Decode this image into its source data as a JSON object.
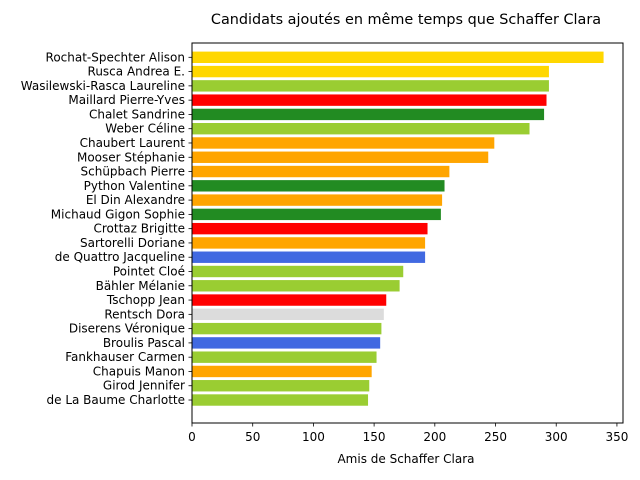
{
  "chart_data": {
    "type": "bar",
    "orientation": "horizontal",
    "title": "Candidats ajoutés en même temps que Schaffer Clara",
    "xlabel": "Amis de Schaffer Clara",
    "ylabel": "",
    "xlim": [
      0,
      355
    ],
    "xticks": [
      0,
      50,
      100,
      150,
      200,
      250,
      300,
      350
    ],
    "grid": false,
    "categories": [
      "Rochat-Spechter Alison",
      "Rusca Andrea E.",
      "Wasilewski-Rasca Laureline",
      "Maillard Pierre-Yves",
      "Chalet Sandrine",
      "Weber Céline",
      "Chaubert Laurent",
      "Mooser Stéphanie",
      "Schüpbach Pierre",
      "Python Valentine",
      "El Din Alexandre",
      "Michaud Gigon Sophie",
      "Crottaz Brigitte",
      "Sartorelli Doriane",
      "de Quattro Jacqueline",
      "Pointet Cloé",
      "Bähler Mélanie",
      "Tschopp Jean",
      "Rentsch Dora",
      "Diserens Véronique",
      "Broulis Pascal",
      "Fankhauser Carmen",
      "Chapuis Manon",
      "Girod Jennifer",
      "de La Baume Charlotte"
    ],
    "values": [
      339,
      294,
      294,
      292,
      290,
      278,
      249,
      244,
      212,
      208,
      206,
      205,
      194,
      192,
      192,
      174,
      171,
      160,
      158,
      156,
      155,
      152,
      148,
      146,
      145
    ],
    "colors": [
      "#ffd700",
      "#ffd700",
      "#9acd32",
      "#ff0000",
      "#228b22",
      "#9acd32",
      "#ffa500",
      "#ffa500",
      "#ffa500",
      "#228b22",
      "#ffa500",
      "#228b22",
      "#ff0000",
      "#ffa500",
      "#4169e1",
      "#9acd32",
      "#9acd32",
      "#ff0000",
      "#dcdcdc",
      "#9acd32",
      "#4169e1",
      "#9acd32",
      "#ffa500",
      "#9acd32",
      "#9acd32"
    ]
  }
}
